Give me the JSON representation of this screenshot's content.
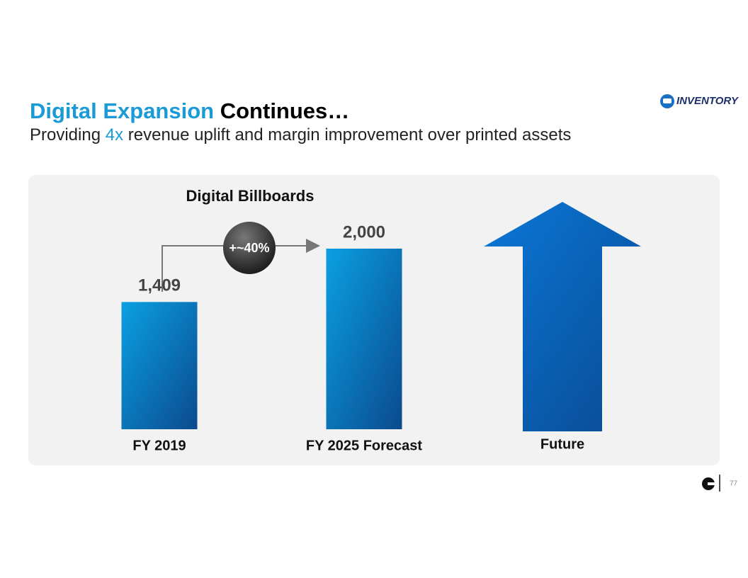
{
  "slide": {
    "title_highlight": "Digital Expansion",
    "title_rest": "Continues…",
    "subtitle_pre": "Providing",
    "subtitle_highlight": "4x",
    "subtitle_post": "revenue uplift and margin improvement over printed assets",
    "logo_text": "INVENTORY",
    "page_number": "77"
  },
  "chart_data": {
    "type": "bar",
    "title": "Digital Billboards",
    "categories": [
      "FY 2019",
      "FY 2025 Forecast",
      "Future"
    ],
    "values": [
      1409,
      2000,
      null
    ],
    "value_labels": [
      "1,409",
      "2,000",
      null
    ],
    "annotation": "+~40%"
  }
}
